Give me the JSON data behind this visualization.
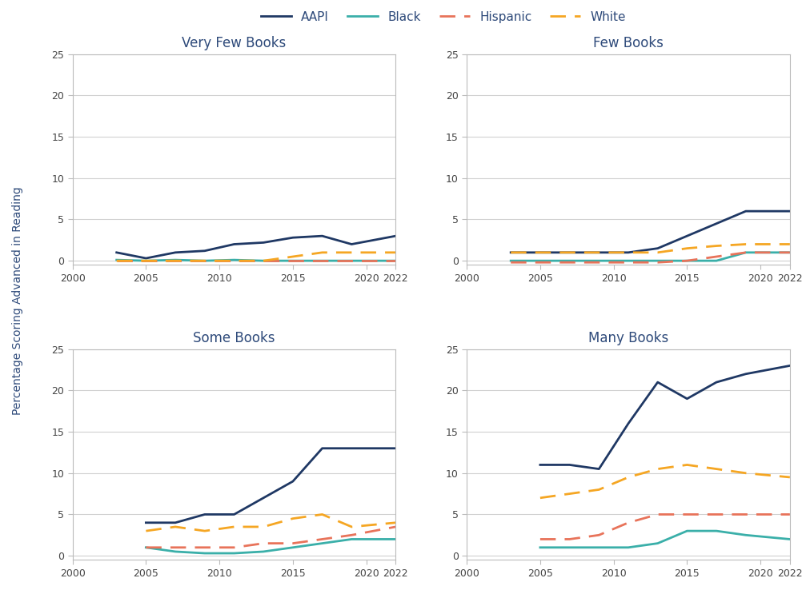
{
  "years": [
    2003,
    2005,
    2007,
    2009,
    2011,
    2013,
    2015,
    2017,
    2019,
    2022
  ],
  "panels": {
    "Very Few Books": {
      "AAPI": [
        1.0,
        0.3,
        1.0,
        1.2,
        2.0,
        2.2,
        2.8,
        3.0,
        2.0,
        3.0
      ],
      "Black": [
        0.1,
        0.0,
        0.1,
        0.0,
        0.1,
        0.0,
        0.0,
        0.0,
        0.0,
        0.0
      ],
      "Hispanic": [
        0.0,
        0.0,
        0.0,
        0.0,
        0.0,
        0.0,
        0.0,
        0.0,
        0.0,
        0.0
      ],
      "White": [
        0.0,
        0.0,
        0.0,
        0.0,
        0.0,
        0.0,
        0.5,
        1.0,
        1.0,
        1.0
      ]
    },
    "Few Books": {
      "AAPI": [
        1.0,
        1.0,
        1.0,
        1.0,
        1.0,
        1.5,
        3.0,
        4.5,
        6.0,
        6.0
      ],
      "Black": [
        0.0,
        0.0,
        0.0,
        0.0,
        0.0,
        0.0,
        0.0,
        0.0,
        1.0,
        1.0
      ],
      "Hispanic": [
        -0.2,
        -0.2,
        -0.2,
        -0.2,
        -0.2,
        -0.2,
        0.0,
        0.5,
        1.0,
        1.0
      ],
      "White": [
        1.0,
        1.0,
        1.0,
        1.0,
        1.0,
        1.0,
        1.5,
        1.8,
        2.0,
        2.0
      ]
    },
    "Some Books": {
      "AAPI": [
        null,
        4.0,
        4.0,
        5.0,
        5.0,
        7.0,
        9.0,
        13.0,
        13.0,
        13.0
      ],
      "Black": [
        null,
        1.0,
        0.5,
        0.3,
        0.3,
        0.5,
        1.0,
        1.5,
        2.0,
        2.0
      ],
      "Hispanic": [
        null,
        1.0,
        1.0,
        1.0,
        1.0,
        1.5,
        1.5,
        2.0,
        2.5,
        3.5
      ],
      "White": [
        null,
        3.0,
        3.5,
        3.0,
        3.5,
        3.5,
        4.5,
        5.0,
        3.5,
        4.0
      ]
    },
    "Many Books": {
      "AAPI": [
        null,
        11.0,
        11.0,
        10.5,
        16.0,
        21.0,
        19.0,
        21.0,
        22.0,
        23.0
      ],
      "Black": [
        null,
        1.0,
        1.0,
        1.0,
        1.0,
        1.5,
        3.0,
        3.0,
        2.5,
        2.0
      ],
      "Hispanic": [
        null,
        2.0,
        2.0,
        2.5,
        4.0,
        5.0,
        5.0,
        5.0,
        5.0,
        5.0
      ],
      "White": [
        null,
        7.0,
        7.5,
        8.0,
        9.5,
        10.5,
        11.0,
        10.5,
        10.0,
        9.5
      ]
    }
  },
  "colors": {
    "AAPI": "#1f3864",
    "Black": "#3aafa9",
    "Hispanic": "#e8735a",
    "White": "#f5a623"
  },
  "line_styles": {
    "AAPI": "-",
    "Black": "-",
    "Hispanic": "--",
    "White": "--"
  },
  "panel_titles": [
    "Very Few Books",
    "Few Books",
    "Some Books",
    "Many Books"
  ],
  "ylabel": "Percentage Scoring Advanced in Reading",
  "ylim": [
    -0.5,
    25
  ],
  "yticks": [
    0,
    5,
    10,
    15,
    20,
    25
  ],
  "xlim": [
    2000,
    2022
  ],
  "xticks": [
    2000,
    2005,
    2010,
    2015,
    2020,
    2022
  ],
  "background_color": "#ffffff",
  "panel_bg": "#ffffff",
  "title_color": "#2e4a7a",
  "grid_color": "#d0d0d0",
  "legend_labels": [
    "AAPI",
    "Black",
    "Hispanic",
    "White"
  ],
  "title_fontsize": 12,
  "label_fontsize": 10,
  "tick_fontsize": 9,
  "legend_fontsize": 11
}
